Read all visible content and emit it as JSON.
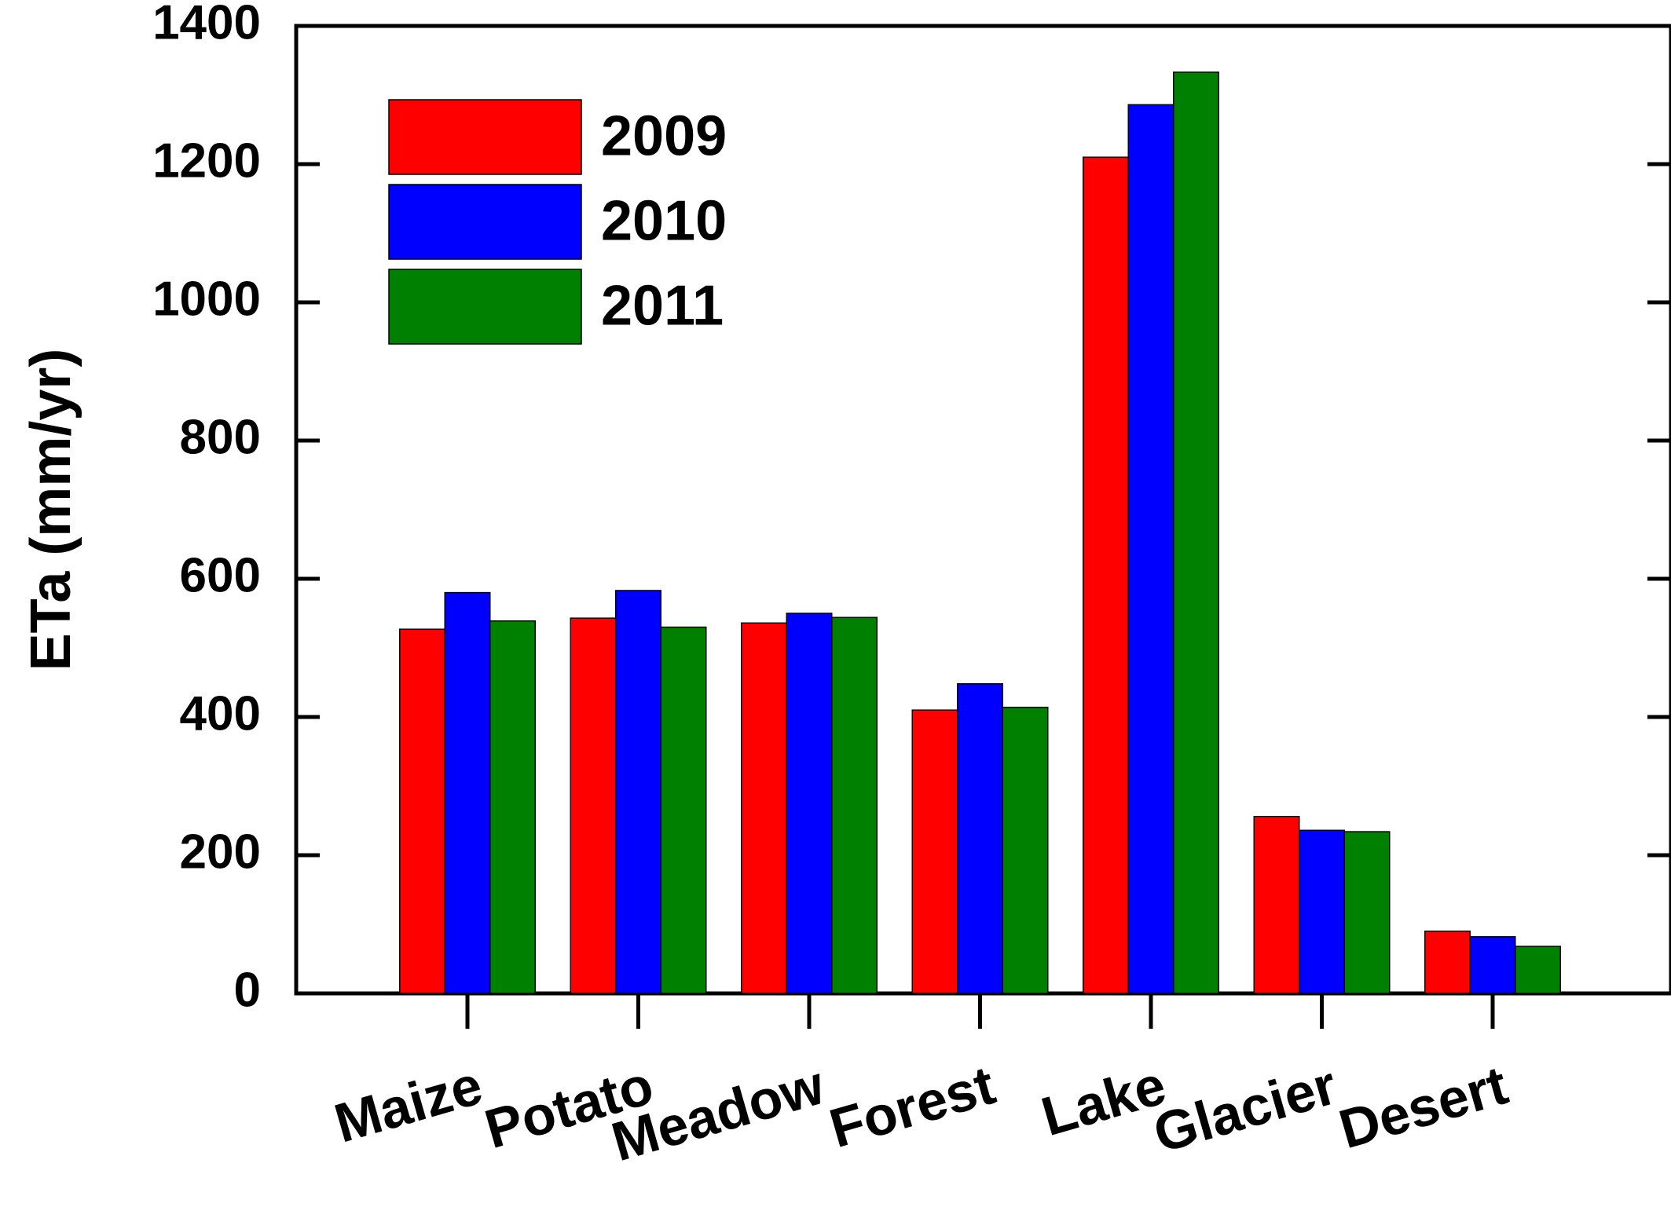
{
  "chart_data": {
    "type": "bar",
    "title": "",
    "xlabel": "",
    "ylabel": "ETa (mm/yr)",
    "ylim": [
      0,
      1400
    ],
    "yticks": [
      0,
      200,
      400,
      600,
      800,
      1000,
      1200,
      1400
    ],
    "categories": [
      "Maize",
      "Potato",
      "Meadow",
      "Forest",
      "Lake",
      "Glacier",
      "Desert"
    ],
    "series": [
      {
        "name": "2009",
        "color": "#ff0000",
        "values": [
          527,
          543,
          536,
          410,
          1210,
          256,
          90
        ]
      },
      {
        "name": "2010",
        "color": "#0000ff",
        "values": [
          580,
          583,
          550,
          448,
          1286,
          236,
          82
        ]
      },
      {
        "name": "2011",
        "color": "#008000",
        "values": [
          539,
          530,
          544,
          414,
          1333,
          234,
          68
        ]
      }
    ],
    "legend_position": "top-left",
    "grid": false
  }
}
